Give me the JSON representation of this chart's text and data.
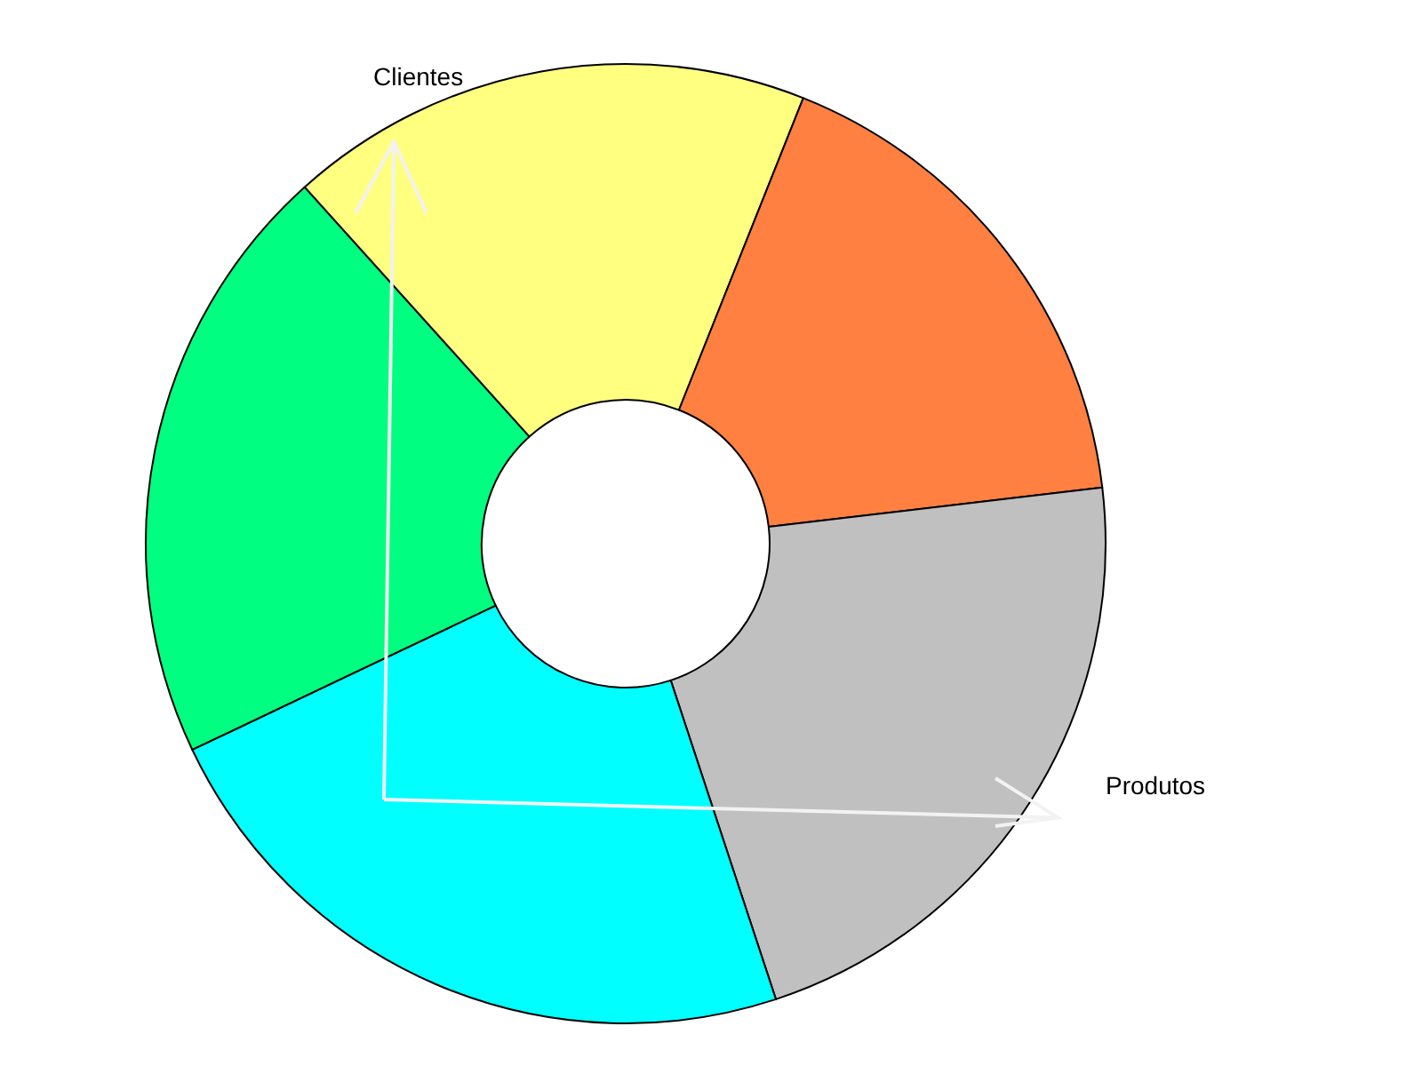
{
  "chart_data": {
    "type": "donut",
    "categories": [
      null,
      null,
      null,
      null,
      null
    ],
    "values": [
      17.7,
      17.1,
      21.8,
      23.0,
      20.4
    ],
    "colors": [
      "#ffff80",
      "#ff8040",
      "#c0c0c0",
      "#00ffff",
      "#00ff80"
    ],
    "annotations": [
      "Clientes",
      "Produtos"
    ],
    "legend": false
  }
}
